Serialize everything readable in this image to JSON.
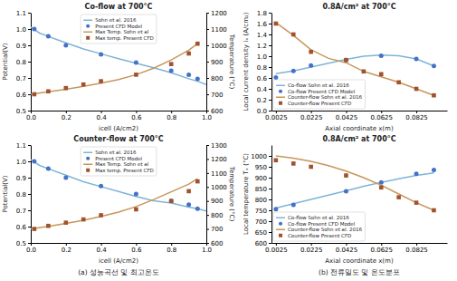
{
  "chart_data": [
    {
      "type": "line",
      "title": "Co-flow at 700°C",
      "xlabel": "icell (A/cm2)",
      "ylabel": "Potential(V)",
      "y2label": "Temperature (°C)",
      "xlim": [
        0,
        1.0
      ],
      "ylim": [
        0.5,
        1.1
      ],
      "y2lim": [
        600,
        1200
      ],
      "xticks": [
        {
          "value": 0,
          "label": "0.0"
        },
        0.2,
        0.4,
        0.6,
        0.8,
        {
          "value": 1.0,
          "label": "1.0"
        }
      ],
      "yticks": [
        0.5,
        0.6,
        0.7,
        0.8,
        0.9,
        {
          "value": 1.0,
          "label": "1.0"
        },
        1.1
      ],
      "y2ticks": [
        600,
        700,
        800,
        900,
        1000,
        1100,
        1200
      ],
      "grid": false,
      "legend": "upper center",
      "series": [
        {
          "name": "Sohn et al. 2016",
          "type": "line",
          "color": "#7EB4D8",
          "x": [
            0.0,
            0.05,
            0.1,
            0.15,
            0.2,
            0.3,
            0.4,
            0.5,
            0.6,
            0.7,
            0.8,
            0.9,
            0.95,
            1.0
          ],
          "values": [
            1.01,
            0.975,
            0.955,
            0.935,
            0.915,
            0.878,
            0.848,
            0.818,
            0.79,
            0.762,
            0.732,
            0.695,
            0.68,
            0.66
          ]
        },
        {
          "name": "Present CFD Model",
          "type": "scatter",
          "marker": "circle",
          "color": "#4472C4",
          "x": [
            0.02,
            0.1,
            0.2,
            0.4,
            0.6,
            0.8,
            0.9,
            0.95
          ],
          "values": [
            1.0,
            0.955,
            0.9,
            0.845,
            0.795,
            0.745,
            0.72,
            0.695
          ]
        },
        {
          "name": "Max Temp. Sohn et al",
          "type": "line",
          "color": "#C8965A",
          "axis": "y2",
          "x": [
            0.0,
            0.1,
            0.2,
            0.3,
            0.4,
            0.5,
            0.6,
            0.7,
            0.8,
            0.9,
            0.95
          ],
          "values": [
            700,
            715,
            730,
            748,
            768,
            790,
            820,
            860,
            910,
            970,
            1010
          ]
        },
        {
          "name": "Max temp. Present CFD",
          "type": "scatter",
          "marker": "square",
          "color": "#A0522D",
          "axis": "y2",
          "x": [
            0.02,
            0.1,
            0.2,
            0.3,
            0.4,
            0.6,
            0.8,
            0.9,
            0.95
          ],
          "values": [
            700,
            718,
            738,
            760,
            780,
            820,
            885,
            950,
            1010
          ]
        }
      ]
    },
    {
      "type": "line",
      "title": "Counter-flow at 700°C",
      "xlabel": "icell (A/cm2)",
      "ylabel": "Potential(V)",
      "y2label": "Temperature (°C)",
      "xlim": [
        0,
        1.0
      ],
      "ylim": [
        0.5,
        1.1
      ],
      "y2lim": [
        600,
        1300
      ],
      "xticks": [
        {
          "value": 0,
          "label": "0.0"
        },
        0.2,
        0.4,
        0.6,
        0.8,
        {
          "value": 1.0,
          "label": "1.0"
        }
      ],
      "yticks": [
        0.5,
        0.6,
        0.7,
        0.8,
        0.9,
        {
          "value": 1.0,
          "label": "1.0"
        },
        1.1
      ],
      "y2ticks": [
        600,
        700,
        800,
        900,
        1000,
        1100,
        1200,
        1300
      ],
      "grid": false,
      "legend": "upper center",
      "annotation": "(a) 성능곡선 및 최고온도",
      "series": [
        {
          "name": "Sohn et al. 2016",
          "type": "line",
          "color": "#7EB4D8",
          "x": [
            0.0,
            0.05,
            0.1,
            0.2,
            0.3,
            0.4,
            0.5,
            0.6,
            0.7,
            0.8,
            0.9,
            0.95,
            1.0
          ],
          "values": [
            1.01,
            0.975,
            0.955,
            0.915,
            0.875,
            0.845,
            0.815,
            0.785,
            0.758,
            0.745,
            0.72,
            0.71,
            0.695
          ]
        },
        {
          "name": "Present CFD Model",
          "type": "scatter",
          "marker": "circle",
          "color": "#4472C4",
          "x": [
            0.02,
            0.1,
            0.2,
            0.4,
            0.6,
            0.8,
            0.9,
            0.95
          ],
          "values": [
            1.0,
            0.955,
            0.9,
            0.848,
            0.8,
            0.757,
            0.735,
            0.71
          ]
        },
        {
          "name": "Max Temp. Sohn et al",
          "type": "line",
          "color": "#C8965A",
          "axis": "y2",
          "x": [
            0.0,
            0.1,
            0.2,
            0.3,
            0.4,
            0.5,
            0.6,
            0.7,
            0.8,
            0.9,
            0.95
          ],
          "values": [
            700,
            718,
            740,
            762,
            790,
            820,
            860,
            910,
            965,
            1020,
            1060
          ]
        },
        {
          "name": "Max temp. Present CFD",
          "type": "scatter",
          "marker": "square",
          "color": "#A0522D",
          "axis": "y2",
          "x": [
            0.02,
            0.1,
            0.2,
            0.3,
            0.4,
            0.6,
            0.8,
            0.9,
            0.95
          ],
          "values": [
            700,
            722,
            745,
            768,
            798,
            840,
            900,
            970,
            1040
          ]
        }
      ]
    },
    {
      "type": "line",
      "title": "0.8A/cm² at 700°C",
      "xlabel": "Axial coordinate x(m)",
      "ylabel": "Local current density iₓ (A/cm₂)",
      "xlim": [
        0.0,
        0.1
      ],
      "ylim": [
        0,
        1.8
      ],
      "xticks": [
        0.0025,
        0.0225,
        0.0425,
        0.0625,
        0.0825
      ],
      "yticks": [
        {
          "value": 0,
          "label": "0.0"
        },
        0.2,
        0.4,
        0.6,
        0.8,
        {
          "value": 1.0,
          "label": "1.0"
        },
        1.2,
        1.4,
        1.6,
        1.8
      ],
      "grid": false,
      "legend": "lower left",
      "series": [
        {
          "name": "Co-flow Sohn et al. 2016",
          "type": "line",
          "color": "#7EB4D8",
          "x": [
            0.0025,
            0.0125,
            0.0225,
            0.0325,
            0.0425,
            0.0525,
            0.0625,
            0.0725,
            0.0825,
            0.0925
          ],
          "values": [
            0.68,
            0.73,
            0.8,
            0.87,
            0.94,
            1.0,
            1.02,
            1.01,
            0.95,
            0.82
          ]
        },
        {
          "name": "Co-flow Present CFD Model",
          "type": "scatter",
          "marker": "circle",
          "color": "#4472C4",
          "x": [
            0.0025,
            0.0125,
            0.0225,
            0.0425,
            0.0625,
            0.0825,
            0.0925
          ],
          "values": [
            0.61,
            0.73,
            0.83,
            0.93,
            1.01,
            0.95,
            0.82
          ]
        },
        {
          "name": "Counter-flow Sohn et al. 2016",
          "type": "line",
          "color": "#C8965A",
          "x": [
            0.0025,
            0.0125,
            0.0225,
            0.0325,
            0.0425,
            0.0525,
            0.0625,
            0.0725,
            0.0825,
            0.0925
          ],
          "values": [
            1.62,
            1.38,
            1.12,
            0.96,
            0.88,
            0.72,
            0.62,
            0.52,
            0.4,
            0.28
          ]
        },
        {
          "name": "Counter-flow Present CFD",
          "type": "scatter",
          "marker": "square",
          "color": "#A0522D",
          "x": [
            0.0025,
            0.0125,
            0.0225,
            0.0425,
            0.0525,
            0.0625,
            0.0725,
            0.0825,
            0.0925
          ],
          "values": [
            1.6,
            1.4,
            1.08,
            0.93,
            0.72,
            0.67,
            0.52,
            0.4,
            0.28
          ]
        }
      ]
    },
    {
      "type": "line",
      "title": "0.8A/cm² at 700°C",
      "xlabel": "Axial coordinate x(m)",
      "ylabel": "Local temperature Tₓ (°C)",
      "xlim": [
        0.0,
        0.1
      ],
      "ylim": [
        600,
        1050
      ],
      "xticks": [
        0.0025,
        0.0225,
        0.0425,
        0.0625,
        0.0825
      ],
      "yticks": [
        600,
        650,
        700,
        750,
        800,
        850,
        900,
        950,
        1000
      ],
      "grid": false,
      "legend": "lower left",
      "annotation": "(b) 전류밀도 및 온도분포",
      "series": [
        {
          "name": "Co-flow Sohn et al. 2016",
          "type": "line",
          "color": "#7EB4D8",
          "x": [
            0.0025,
            0.0125,
            0.0225,
            0.0325,
            0.0425,
            0.0525,
            0.0625,
            0.0725,
            0.0825,
            0.0925
          ],
          "values": [
            760,
            780,
            800,
            820,
            840,
            860,
            878,
            895,
            910,
            922
          ]
        },
        {
          "name": "Co-flow Present CFD Model",
          "type": "scatter",
          "marker": "circle",
          "color": "#4472C4",
          "x": [
            0.0025,
            0.0125,
            0.0425,
            0.0625,
            0.0825,
            0.0925
          ],
          "values": [
            755,
            775,
            838,
            878,
            918,
            935
          ]
        },
        {
          "name": "Counter-flow Sohn et al. 2016",
          "type": "line",
          "color": "#C8965A",
          "x": [
            0.0025,
            0.0125,
            0.0225,
            0.0325,
            0.0425,
            0.0525,
            0.0625,
            0.0725,
            0.0825,
            0.0925
          ],
          "values": [
            1000,
            990,
            975,
            955,
            930,
            900,
            865,
            825,
            785,
            750
          ]
        },
        {
          "name": "Counter-flow Present CFD",
          "type": "scatter",
          "marker": "square",
          "color": "#A0522D",
          "x": [
            0.0025,
            0.0125,
            0.0225,
            0.0425,
            0.0625,
            0.0725,
            0.0825,
            0.0925
          ],
          "values": [
            980,
            965,
            950,
            910,
            855,
            810,
            785,
            750
          ]
        }
      ]
    }
  ]
}
